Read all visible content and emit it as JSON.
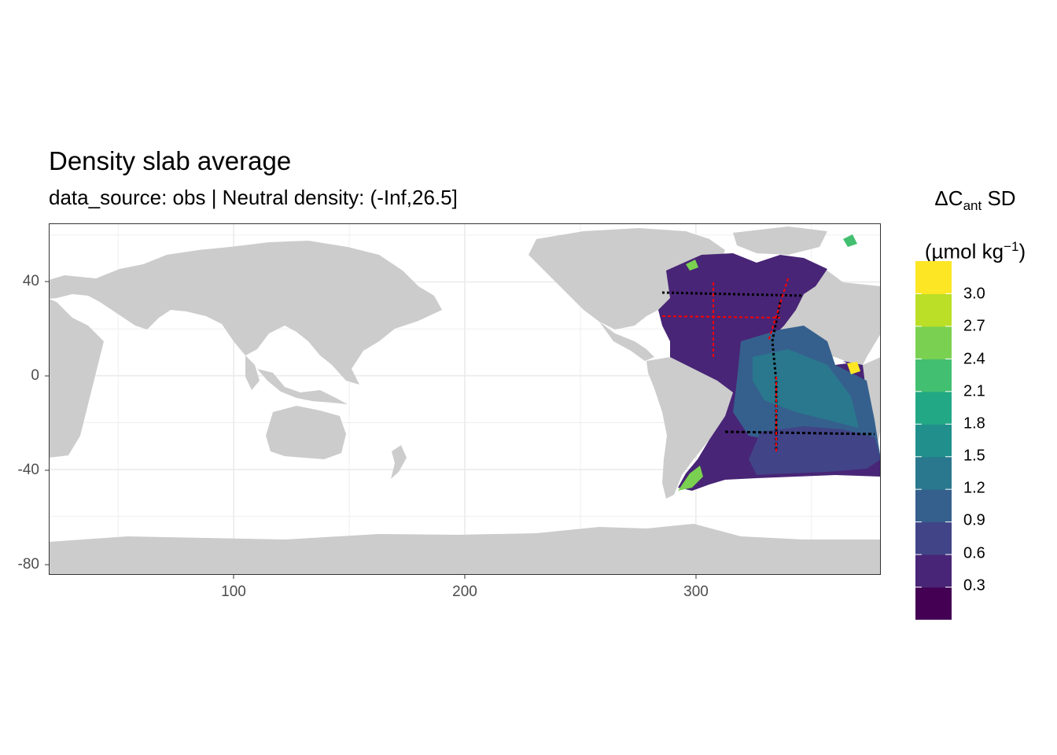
{
  "title": "Density slab average",
  "subtitle": "data_source: obs | Neutral density: (-Inf,26.5]",
  "legend": {
    "title_symbol": "ΔC",
    "title_sub": "ant",
    "title_rest": " SD",
    "unit_open": "(µmol kg",
    "unit_sup": "−1",
    "unit_close": ")",
    "labels": [
      "3.0",
      "2.7",
      "2.4",
      "2.1",
      "1.8",
      "1.5",
      "1.2",
      "0.9",
      "0.6",
      "0.3"
    ],
    "colors": [
      "#440154",
      "#482576",
      "#414487",
      "#35608D",
      "#2A788E",
      "#21908C",
      "#22A884",
      "#43BF71",
      "#7AD151",
      "#BBDF27",
      "#FDE725"
    ],
    "breaks": [
      0,
      0.3,
      0.6,
      0.9,
      1.2,
      1.5,
      1.8,
      2.1,
      2.4,
      2.7,
      3.0,
      3.3
    ]
  },
  "axes": {
    "x_ticks": [
      "100",
      "200",
      "300"
    ],
    "y_ticks": [
      "40",
      "0",
      "-40",
      "-80"
    ],
    "x_range": [
      20,
      380
    ],
    "y_range": [
      -85,
      65
    ]
  },
  "colors": {
    "land": "#CCCCCC",
    "grid": "#EBEBEB",
    "obs_black": "#000000",
    "obs_red": "#FF0000",
    "obs_grey": "#999999"
  }
}
